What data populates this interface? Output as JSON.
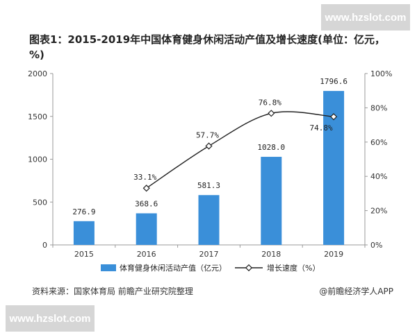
{
  "watermark": {
    "top": "www.hzslot.com",
    "bottom": "www.hzslot.com"
  },
  "title": "图表1：2015-2019年中国体育健身休闲活动产值及增长速度(单位：亿元，%)",
  "footer": {
    "source": "资料来源：国家体育局 前瞻产业研究院整理",
    "credit": "@前瞻经济学人APP"
  },
  "colors": {
    "bar": "#3a8fd9",
    "line": "#222222",
    "axis": "#999999"
  },
  "chart_data": {
    "type": "bar",
    "categories": [
      "2015",
      "2016",
      "2017",
      "2018",
      "2019"
    ],
    "series": [
      {
        "name": "体育健身休闲活动产值（亿元）",
        "type": "bar",
        "axis": "left",
        "values": [
          276.9,
          368.6,
          581.3,
          1028.0,
          1796.6
        ],
        "labels": [
          "276.9",
          "368.6",
          "581.3",
          "1028.0",
          "1796.6"
        ]
      },
      {
        "name": "增长速度（%）",
        "type": "line",
        "axis": "right",
        "values": [
          null,
          33.1,
          57.7,
          76.8,
          74.8
        ],
        "labels": [
          "",
          "33.1%",
          "57.7%",
          "76.8%",
          "74.8%"
        ]
      }
    ],
    "y_left": {
      "min": 0,
      "max": 2000,
      "ticks": [
        "0",
        "500",
        "1000",
        "1500",
        "2000"
      ]
    },
    "y_right": {
      "min": 0,
      "max": 100,
      "ticks": [
        "0%",
        "20%",
        "40%",
        "60%",
        "80%",
        "100%"
      ]
    },
    "legend_position": "bottom",
    "grid": false
  }
}
